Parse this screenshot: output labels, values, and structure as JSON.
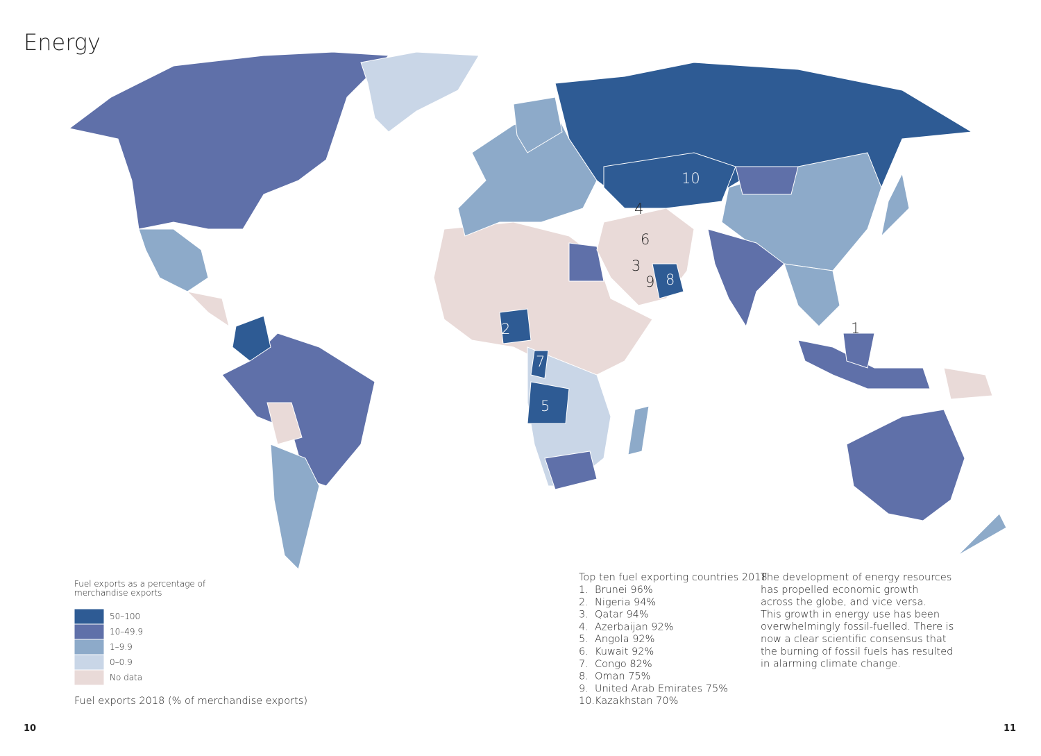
{
  "title": "Energy",
  "map_labels": [
    "10",
    "4",
    "6",
    "3",
    "9",
    "8",
    "2",
    "7",
    "5",
    "1"
  ],
  "legend": {
    "title": "Fuel exports as a percentage of merchandise exports",
    "items": [
      {
        "label": "50–100",
        "color": "#2e5b94"
      },
      {
        "label": "10–49.9",
        "color": "#5f70a9"
      },
      {
        "label": "1–9.9",
        "color": "#8daac9"
      },
      {
        "label": "0–0.9",
        "color": "#c9d6e7"
      },
      {
        "label": "No data",
        "color": "#e9dad8"
      }
    ]
  },
  "caption": "Fuel exports 2018 (% of merchandise exports)",
  "top_ten": {
    "heading": "Top ten fuel exporting countries 2018",
    "items": [
      {
        "rank": "1.",
        "text": "Brunei 96%"
      },
      {
        "rank": "2.",
        "text": "Nigeria 94%"
      },
      {
        "rank": "3.",
        "text": "Qatar 94%"
      },
      {
        "rank": "4.",
        "text": "Azerbaijan 92%"
      },
      {
        "rank": "5.",
        "text": "Angola 92%"
      },
      {
        "rank": "6.",
        "text": "Kuwait 92%"
      },
      {
        "rank": "7.",
        "text": "Congo 82%"
      },
      {
        "rank": "8.",
        "text": "Oman 75%"
      },
      {
        "rank": "9.",
        "text": "United Arab Emirates 75%"
      },
      {
        "rank": "10.",
        "text": "Kazakhstan 70%"
      }
    ]
  },
  "body": [
    "The development of energy resources",
    "has propelled economic growth",
    "across the globe, and vice versa.",
    "This growth in energy use has been",
    "overwhelmingly fossil-fuelled. There is",
    "now a clear scientific consensus that",
    "the burning of fossil fuels has resulted",
    "in alarming climate change."
  ],
  "page_numbers": [
    "10",
    "11"
  ]
}
